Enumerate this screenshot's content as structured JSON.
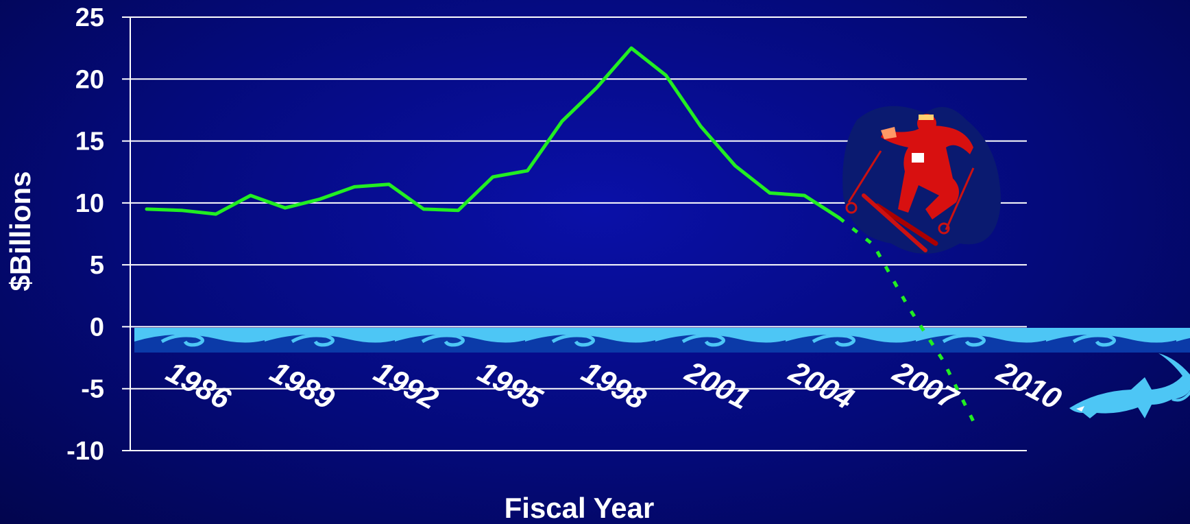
{
  "chart_data": {
    "type": "line",
    "xlabel": "Fiscal Year",
    "ylabel": "$Billions",
    "ylim": [
      -10,
      25
    ],
    "yticks": [
      25,
      20,
      15,
      10,
      5,
      0,
      -5,
      -10
    ],
    "xtick_labels": [
      "1986",
      "1989",
      "1992",
      "1995",
      "1998",
      "2001",
      "2004",
      "2007",
      "2010"
    ],
    "grid": true,
    "series": [
      {
        "style": "solid",
        "color": "#22ee22",
        "x": [
          1985,
          1986,
          1987,
          1988,
          1989,
          1990,
          1991,
          1992,
          1993,
          1994,
          1995,
          1996,
          1997,
          1998,
          1999,
          2000,
          2001,
          2002,
          2003,
          2004,
          2005
        ],
        "y": [
          9.5,
          9.4,
          9.1,
          10.6,
          9.6,
          10.3,
          11.3,
          11.5,
          9.5,
          9.4,
          12.1,
          12.6,
          16.6,
          19.3,
          22.5,
          20.3,
          16.2,
          13.0,
          10.8,
          10.6,
          8.8
        ]
      },
      {
        "style": "dashed",
        "color": "#22ee22",
        "x": [
          2005,
          2006,
          2007,
          2008,
          2009
        ],
        "y": [
          8.8,
          6.6,
          1.6,
          -2.7,
          -8.3
        ]
      }
    ],
    "annotations": [
      {
        "type": "icon",
        "name": "skier-icon",
        "at_year": 2007
      },
      {
        "type": "icon",
        "name": "shark-icon",
        "at_year": 2012
      },
      {
        "type": "band",
        "name": "ocean-waves",
        "from_y": -2,
        "to_y": 0
      }
    ]
  }
}
